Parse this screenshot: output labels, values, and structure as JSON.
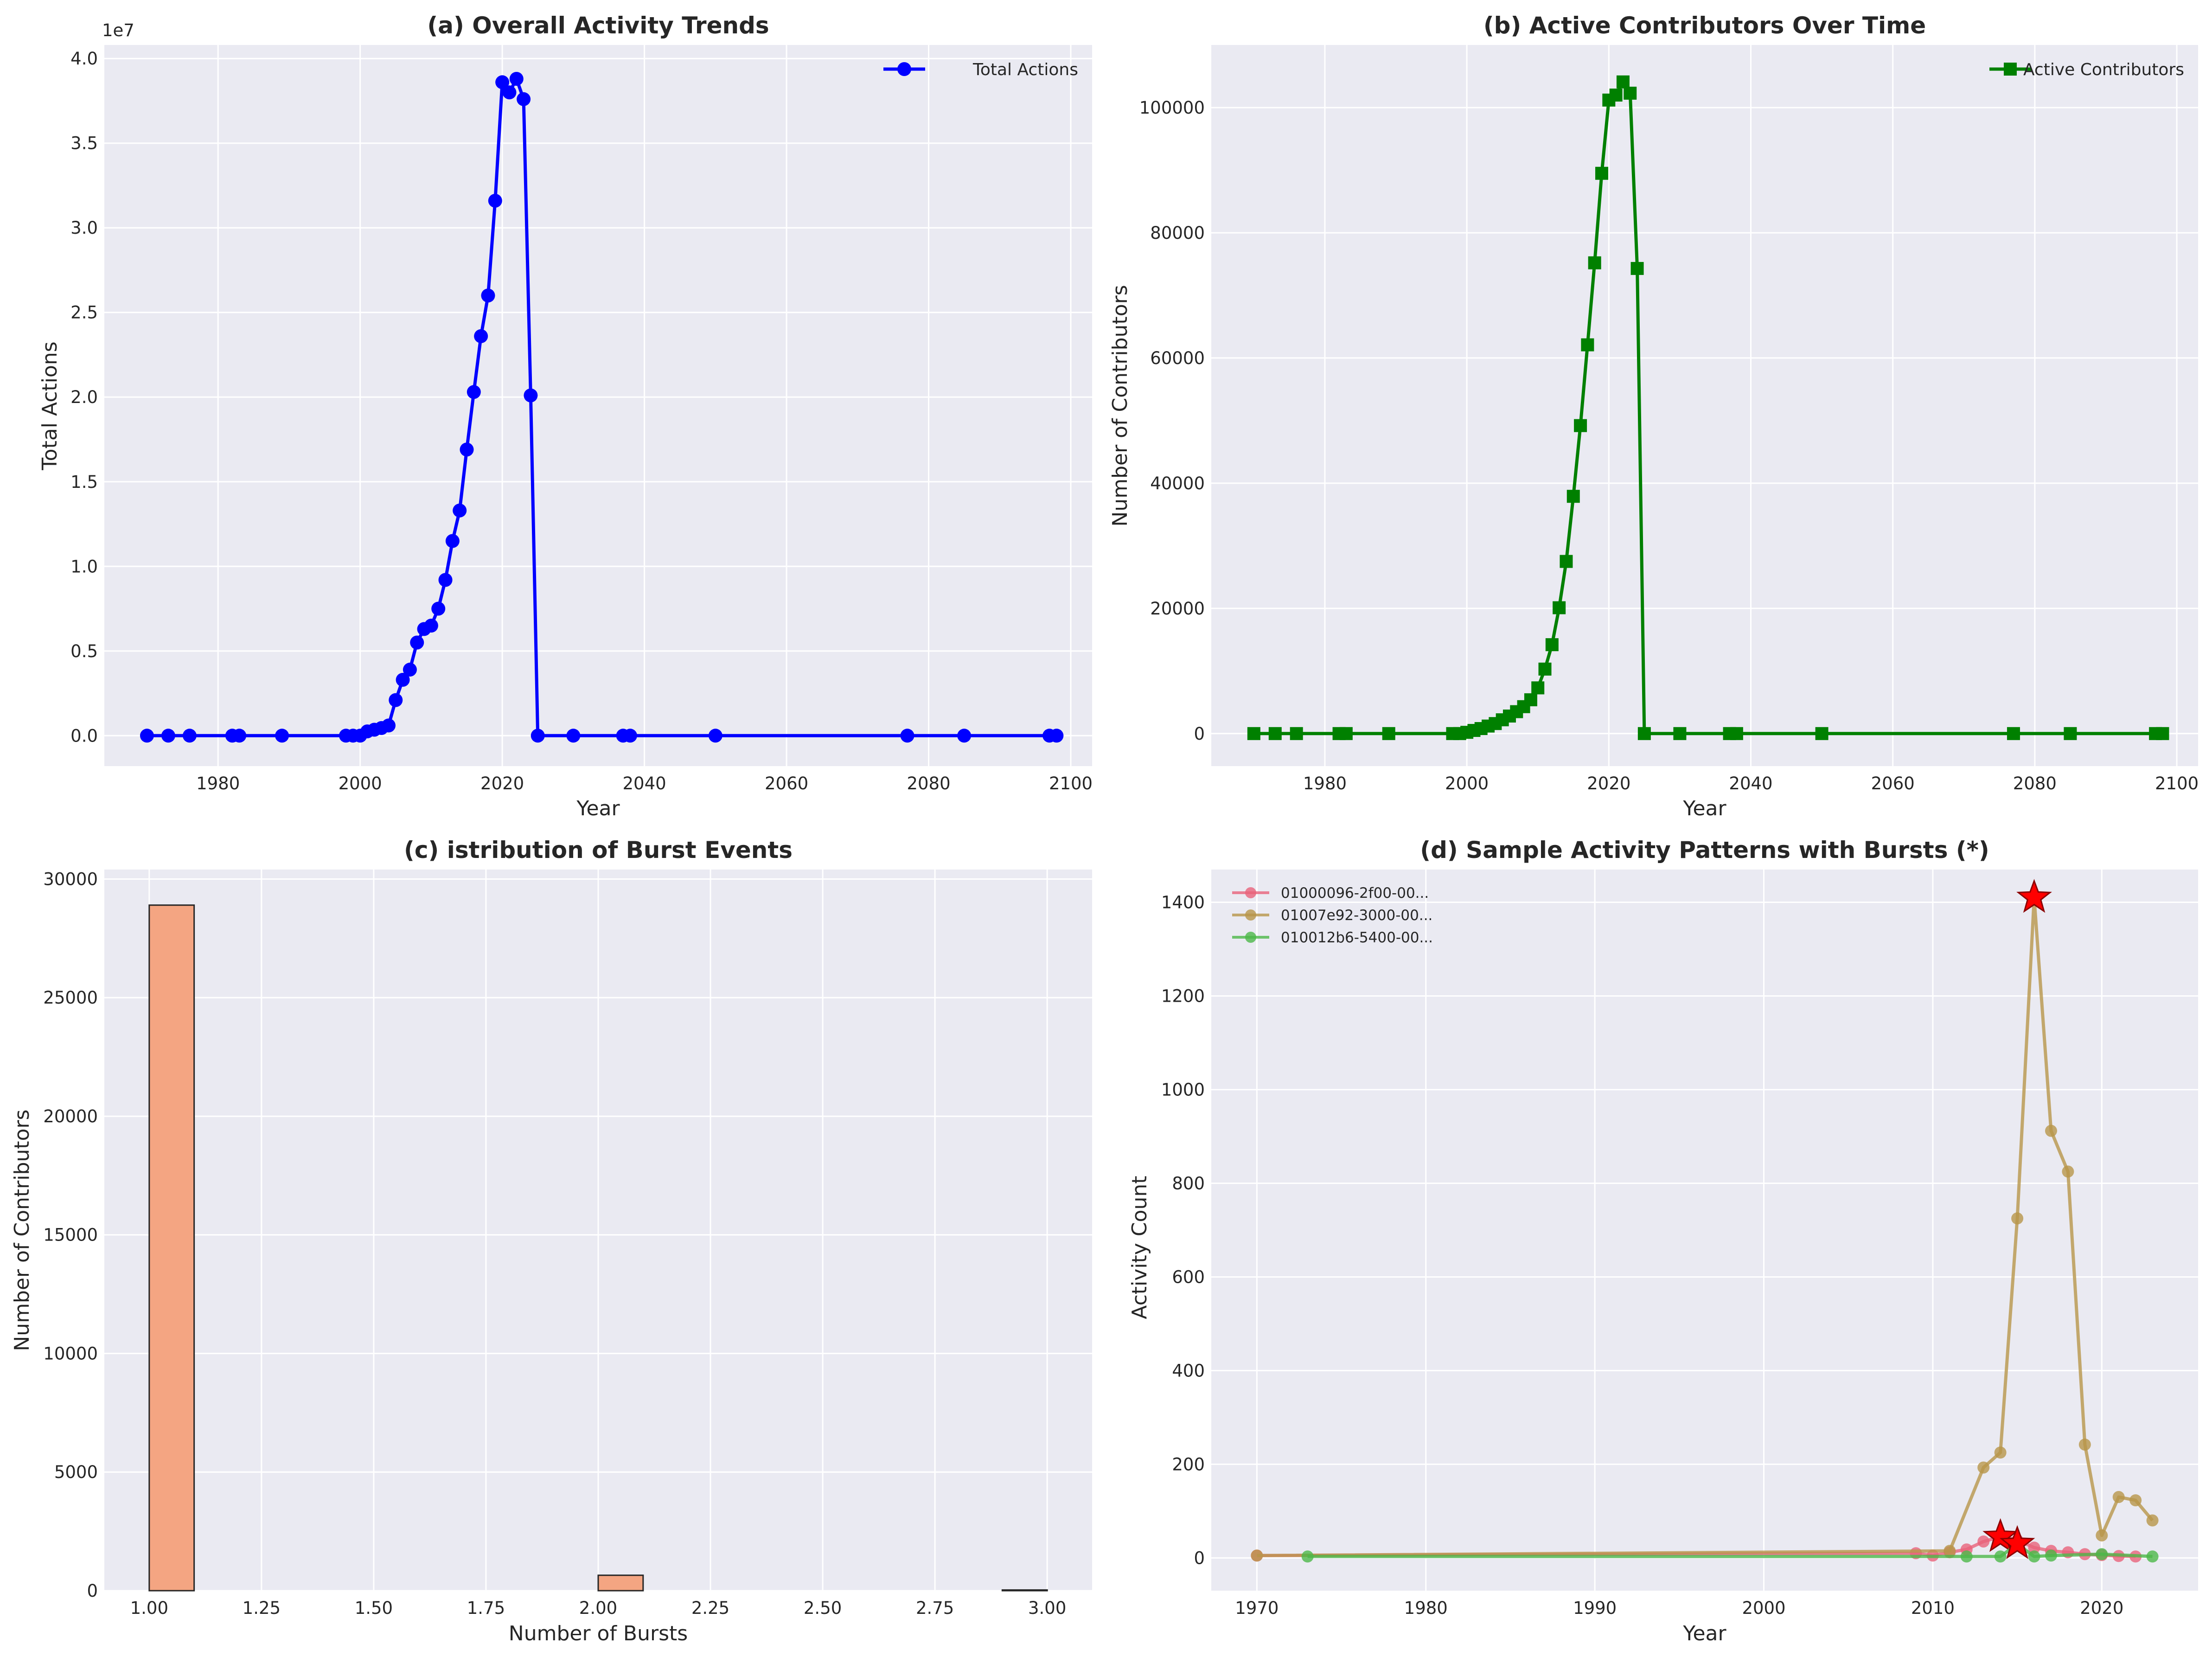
{
  "figure": {
    "background": "#ffffff",
    "plot_background": "#eaeaf2"
  },
  "chart_data": [
    {
      "id": "a",
      "type": "line",
      "title": "(a) Overall Activity Trends",
      "xlabel": "Year",
      "ylabel": "Total Actions",
      "offset_label": "1e7",
      "xlim": [
        1964,
        2103
      ],
      "ylim": [
        -1.8,
        40.8
      ],
      "xticks": [
        1980,
        2000,
        2020,
        2040,
        2060,
        2080,
        2100
      ],
      "xtick_labels": [
        "1980",
        "2000",
        "2020",
        "2040",
        "2060",
        "2080",
        "2100"
      ],
      "yticks": [
        0,
        5,
        10,
        15,
        20,
        25,
        30,
        35,
        40
      ],
      "ytick_labels": [
        "0.0",
        "0.5",
        "1.0",
        "1.5",
        "2.0",
        "2.5",
        "3.0",
        "3.5",
        "4.0"
      ],
      "legend_position": "upper right",
      "series": [
        {
          "name": "Total Actions",
          "color": "#0000ff",
          "marker": "circle",
          "x": [
            1970,
            1973,
            1976,
            1982,
            1983,
            1989,
            1998,
            1999,
            2000,
            2001,
            2002,
            2003,
            2004,
            2005,
            2006,
            2007,
            2008,
            2009,
            2010,
            2011,
            2012,
            2013,
            2014,
            2015,
            2016,
            2017,
            2018,
            2019,
            2020,
            2021,
            2022,
            2023,
            2024,
            2025,
            2030,
            2037,
            2038,
            2050,
            2077,
            2085,
            2097,
            2098
          ],
          "y": [
            0,
            0,
            0,
            0,
            0,
            0,
            0,
            0,
            0,
            0.25,
            0.35,
            0.45,
            0.6,
            2.1,
            3.3,
            3.9,
            5.5,
            6.3,
            6.5,
            7.5,
            9.2,
            11.5,
            13.3,
            16.9,
            20.3,
            23.6,
            26.0,
            31.6,
            38.6,
            38.0,
            38.8,
            37.6,
            20.1,
            0,
            0,
            0,
            0,
            0,
            0,
            0,
            0,
            0
          ]
        }
      ]
    },
    {
      "id": "b",
      "type": "line",
      "title": "(b) Active Contributors Over Time",
      "xlabel": "Year",
      "ylabel": "Number of Contributors",
      "xlim": [
        1964,
        2103
      ],
      "ylim": [
        -5200,
        110000
      ],
      "xticks": [
        1980,
        2000,
        2020,
        2040,
        2060,
        2080,
        2100
      ],
      "xtick_labels": [
        "1980",
        "2000",
        "2020",
        "2040",
        "2060",
        "2080",
        "2100"
      ],
      "yticks": [
        0,
        20000,
        40000,
        60000,
        80000,
        100000
      ],
      "ytick_labels": [
        "0",
        "20000",
        "40000",
        "60000",
        "80000",
        "100000"
      ],
      "legend_position": "upper right",
      "series": [
        {
          "name": "Active Contributors",
          "color": "#008000",
          "marker": "square",
          "x": [
            1970,
            1973,
            1976,
            1982,
            1983,
            1989,
            1998,
            1999,
            2000,
            2001,
            2002,
            2003,
            2004,
            2005,
            2006,
            2007,
            2008,
            2009,
            2010,
            2011,
            2012,
            2013,
            2014,
            2015,
            2016,
            2017,
            2018,
            2019,
            2020,
            2021,
            2022,
            2023,
            2024,
            2025,
            2030,
            2037,
            2038,
            2050,
            2077,
            2085,
            2097,
            2098
          ],
          "y": [
            0,
            0,
            0,
            0,
            0,
            0,
            0,
            0,
            200,
            500,
            800,
            1200,
            1600,
            2200,
            2800,
            3500,
            4300,
            5400,
            7300,
            10300,
            14200,
            20100,
            27500,
            37900,
            49200,
            62100,
            75200,
            89500,
            101200,
            102000,
            104100,
            102300,
            74300,
            0,
            0,
            0,
            0,
            0,
            0,
            0,
            0,
            0
          ]
        }
      ]
    },
    {
      "id": "c",
      "type": "bar",
      "title": "(c) istribution of Burst Events",
      "xlabel": "Number of Bursts",
      "ylabel": "Number of Contributors",
      "xlim": [
        0.9,
        3.1
      ],
      "ylim": [
        0,
        30400
      ],
      "xticks": [
        1.0,
        1.25,
        1.5,
        1.75,
        2.0,
        2.25,
        2.5,
        2.75,
        3.0
      ],
      "xtick_labels": [
        "1.00",
        "1.25",
        "1.50",
        "1.75",
        "2.00",
        "2.25",
        "2.50",
        "2.75",
        "3.00"
      ],
      "yticks": [
        0,
        5000,
        10000,
        15000,
        20000,
        25000,
        30000
      ],
      "ytick_labels": [
        "0",
        "5000",
        "10000",
        "15000",
        "20000",
        "25000",
        "30000"
      ],
      "bar_color": "#f4a582",
      "bar_edge": "#262626",
      "bins": [
        {
          "from": 1.0,
          "to": 1.1,
          "count": 28900
        },
        {
          "from": 2.0,
          "to": 2.1,
          "count": 650
        },
        {
          "from": 2.9,
          "to": 3.0,
          "count": 30
        }
      ]
    },
    {
      "id": "d",
      "type": "line",
      "title": "(d) Sample Activity Patterns with Bursts (*)",
      "xlabel": "Year",
      "ylabel": "Activity Count",
      "xlim": [
        1967.3,
        2025.7
      ],
      "ylim": [
        -70,
        1470
      ],
      "xticks": [
        1970,
        1980,
        1990,
        2000,
        2010,
        2020
      ],
      "xtick_labels": [
        "1970",
        "1980",
        "1990",
        "2000",
        "2010",
        "2020"
      ],
      "yticks": [
        0,
        200,
        400,
        600,
        800,
        1000,
        1200,
        1400
      ],
      "ytick_labels": [
        "0",
        "200",
        "400",
        "600",
        "800",
        "1000",
        "1200",
        "1400"
      ],
      "legend_position": "upper left",
      "burst_marker_color": "#ff0000",
      "series": [
        {
          "name": "01000096-2f00-00...",
          "color": "#e8637a",
          "x": [
            1970,
            2009,
            2010,
            2011,
            2012,
            2013,
            2014,
            2015,
            2016,
            2017,
            2018,
            2019,
            2020,
            2021,
            2022
          ],
          "y": [
            5,
            10,
            5,
            12,
            18,
            35,
            45,
            38,
            22,
            15,
            12,
            8,
            6,
            4,
            3
          ],
          "bursts_x": [
            2014
          ],
          "bursts_y": [
            45
          ]
        },
        {
          "name": "01007e92-3000-00...",
          "color": "#b8964a",
          "x": [
            1970,
            2011,
            2013,
            2014,
            2015,
            2016,
            2017,
            2018,
            2019,
            2020,
            2021,
            2022,
            2023
          ],
          "y": [
            5,
            15,
            193,
            225,
            725,
            1410,
            912,
            825,
            242,
            48,
            130,
            123,
            80
          ],
          "bursts_x": [
            2016
          ],
          "bursts_y": [
            1410
          ]
        },
        {
          "name": "010012b6-5400-00...",
          "color": "#4cb848",
          "x": [
            1973,
            2012,
            2014,
            2015,
            2016,
            2017,
            2020,
            2023
          ],
          "y": [
            3,
            3,
            3,
            30,
            3,
            5,
            8,
            3
          ],
          "bursts_x": [
            2015
          ],
          "bursts_y": [
            30
          ]
        }
      ]
    }
  ]
}
